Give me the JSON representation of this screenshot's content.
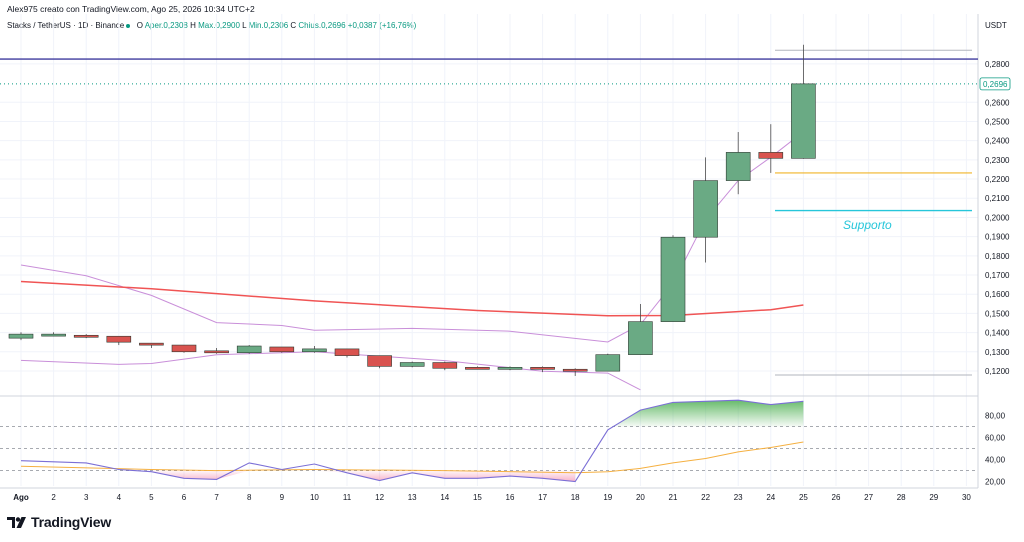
{
  "header": {
    "author_line": "Alex975 creato con TradingView.com, Ago 25, 2026 10:34 UTC+2"
  },
  "legend": {
    "symbol": "Stacks / TetherUS · 1D · Binance",
    "o_label": "O",
    "o_val": "Aper.0,2308",
    "h_label": "H",
    "h_val": "Max.0,2900",
    "l_label": "L",
    "l_val": "Min.0,2306",
    "c_label": "C",
    "c_val": "Chius.0,2696",
    "chg_val": "+0,0387 (+16,76%)"
  },
  "brand": {
    "name": "TradingView",
    "logo_icon": "tradingview-logo-icon"
  },
  "colors": {
    "up": "#6aaa84",
    "down": "#d9534f",
    "ma": "#f05454",
    "band": "#c98fd9",
    "rsi": "#7b6fd6",
    "rsi_ma": "#f5b041",
    "resistance": "#3f3a9e",
    "support": "#26c6da",
    "orange_level": "#f0b429",
    "grid": "#f0f3fa"
  },
  "chart_data": [
    {
      "type": "candlestick",
      "title": "",
      "currency_label": "USDT",
      "x_tick_labels": [
        "Ago",
        "2",
        "3",
        "4",
        "5",
        "6",
        "7",
        "8",
        "9",
        "10",
        "11",
        "12",
        "13",
        "14",
        "15",
        "16",
        "17",
        "18",
        "19",
        "20",
        "21",
        "22",
        "23",
        "24",
        "25",
        "26",
        "27",
        "28",
        "29",
        "30"
      ],
      "ylim": [
        0.108,
        0.2935
      ],
      "y_ticks": [
        0.12,
        0.13,
        0.14,
        0.15,
        0.16,
        0.17,
        0.18,
        0.19,
        0.2,
        0.21,
        0.22,
        0.23,
        0.24,
        0.25,
        0.26,
        0.28
      ],
      "y_tick_labels": [
        "0,1200",
        "0,1300",
        "0,1400",
        "0,1500",
        "0,1600",
        "0,1700",
        "0,1800",
        "0,1900",
        "0,2000",
        "0,2100",
        "0,2200",
        "0,2300",
        "0,2400",
        "0,2500",
        "0,2600",
        "0,2800"
      ],
      "last_price_label": "0,2696",
      "last_price": 0.2696,
      "candles": [
        {
          "day": "Ago",
          "open": 0.1371,
          "high": 0.1402,
          "low": 0.1361,
          "close": 0.1392
        },
        {
          "day": "2",
          "open": 0.1386,
          "high": 0.1402,
          "low": 0.1381,
          "close": 0.1392
        },
        {
          "day": "3",
          "open": 0.1386,
          "high": 0.1392,
          "low": 0.1371,
          "close": 0.1381
        },
        {
          "day": "4",
          "open": 0.1381,
          "high": 0.1381,
          "low": 0.1335,
          "close": 0.135
        },
        {
          "day": "5",
          "open": 0.1345,
          "high": 0.1345,
          "low": 0.132,
          "close": 0.1335
        },
        {
          "day": "6",
          "open": 0.1335,
          "high": 0.1335,
          "low": 0.1295,
          "close": 0.13
        },
        {
          "day": "7",
          "open": 0.1305,
          "high": 0.132,
          "low": 0.129,
          "close": 0.1295
        },
        {
          "day": "8",
          "open": 0.1295,
          "high": 0.1335,
          "low": 0.129,
          "close": 0.133
        },
        {
          "day": "9",
          "open": 0.1325,
          "high": 0.1325,
          "low": 0.1295,
          "close": 0.13
        },
        {
          "day": "10",
          "open": 0.13,
          "high": 0.133,
          "low": 0.1295,
          "close": 0.1315
        },
        {
          "day": "11",
          "open": 0.1315,
          "high": 0.1315,
          "low": 0.127,
          "close": 0.128
        },
        {
          "day": "12",
          "open": 0.128,
          "high": 0.128,
          "low": 0.1214,
          "close": 0.1224
        },
        {
          "day": "13",
          "open": 0.1224,
          "high": 0.1249,
          "low": 0.1219,
          "close": 0.1244
        },
        {
          "day": "14",
          "open": 0.1244,
          "high": 0.1249,
          "low": 0.1204,
          "close": 0.1214
        },
        {
          "day": "15",
          "open": 0.1219,
          "high": 0.1224,
          "low": 0.1209,
          "close": 0.1214
        },
        {
          "day": "16",
          "open": 0.1214,
          "high": 0.1224,
          "low": 0.1204,
          "close": 0.1219
        },
        {
          "day": "17",
          "open": 0.1219,
          "high": 0.1224,
          "low": 0.1194,
          "close": 0.1209
        },
        {
          "day": "18",
          "open": 0.1209,
          "high": 0.1214,
          "low": 0.1174,
          "close": 0.1199
        },
        {
          "day": "19",
          "open": 0.1199,
          "high": 0.129,
          "low": 0.1199,
          "close": 0.1285
        },
        {
          "day": "20",
          "open": 0.1285,
          "high": 0.1549,
          "low": 0.1285,
          "close": 0.1457
        },
        {
          "day": "21",
          "open": 0.1457,
          "high": 0.1907,
          "low": 0.1457,
          "close": 0.1897
        },
        {
          "day": "22",
          "open": 0.1897,
          "high": 0.2313,
          "low": 0.1765,
          "close": 0.2192
        },
        {
          "day": "23",
          "open": 0.2192,
          "high": 0.2445,
          "low": 0.2121,
          "close": 0.2339
        },
        {
          "day": "24",
          "open": 0.2339,
          "high": 0.2486,
          "low": 0.2232,
          "close": 0.2308
        },
        {
          "day": "25",
          "open": 0.2308,
          "high": 0.29,
          "low": 0.2306,
          "close": 0.2696
        }
      ],
      "moving_average": [
        {
          "day": "Ago",
          "value": 0.1666
        },
        {
          "day": "5",
          "value": 0.1628
        },
        {
          "day": "10",
          "value": 0.1565
        },
        {
          "day": "15",
          "value": 0.1515
        },
        {
          "day": "19",
          "value": 0.1488
        },
        {
          "day": "21",
          "value": 0.1489
        },
        {
          "day": "24",
          "value": 0.1519
        },
        {
          "day": "25",
          "value": 0.1544
        }
      ],
      "upper_band": [
        {
          "day": "Ago",
          "value": 0.1752
        },
        {
          "day": "3",
          "value": 0.1696
        },
        {
          "day": "5",
          "value": 0.1594
        },
        {
          "day": "7",
          "value": 0.1452
        },
        {
          "day": "9",
          "value": 0.1437
        },
        {
          "day": "10",
          "value": 0.1412
        },
        {
          "day": "13",
          "value": 0.1422
        },
        {
          "day": "16",
          "value": 0.1407
        },
        {
          "day": "19",
          "value": 0.1351
        },
        {
          "day": "20",
          "value": 0.1442
        },
        {
          "day": "21",
          "value": 0.1655
        },
        {
          "day": "22",
          "value": 0.1988
        },
        {
          "day": "23",
          "value": 0.2192
        },
        {
          "day": "24",
          "value": 0.2314
        },
        {
          "day": "25",
          "value": 0.2446
        }
      ],
      "lower_band": [
        {
          "day": "Ago",
          "value": 0.1255
        },
        {
          "day": "4",
          "value": 0.1234
        },
        {
          "day": "5",
          "value": 0.1239
        },
        {
          "day": "7",
          "value": 0.1285
        },
        {
          "day": "10",
          "value": 0.13
        },
        {
          "day": "14",
          "value": 0.1254
        },
        {
          "day": "17",
          "value": 0.1199
        },
        {
          "day": "19",
          "value": 0.1189
        },
        {
          "day": "20",
          "value": 0.1102
        }
      ],
      "levels": [
        {
          "name": "resistance",
          "value": 0.2825,
          "label": ""
        },
        {
          "name": "orange-level",
          "value": 0.2232,
          "label": ""
        },
        {
          "name": "support",
          "value": 0.2036,
          "label": "Supporto"
        },
        {
          "name": "gray-upper",
          "value": 0.2871,
          "label": ""
        },
        {
          "name": "gray-lower",
          "value": 0.1179,
          "label": ""
        }
      ]
    },
    {
      "type": "line",
      "title": "",
      "ylim": [
        16,
        96
      ],
      "y_ticks": [
        20,
        40,
        60,
        80
      ],
      "y_tick_labels": [
        "20,00",
        "40,00",
        "60,00",
        "80,00"
      ],
      "dashed_levels": [
        70,
        50,
        30
      ],
      "rsi": [
        {
          "day": "Ago",
          "value": 39
        },
        {
          "day": "2",
          "value": 38
        },
        {
          "day": "3",
          "value": 37
        },
        {
          "day": "4",
          "value": 31
        },
        {
          "day": "5",
          "value": 29
        },
        {
          "day": "6",
          "value": 23
        },
        {
          "day": "7",
          "value": 22
        },
        {
          "day": "8",
          "value": 37
        },
        {
          "day": "9",
          "value": 31
        },
        {
          "day": "10",
          "value": 36
        },
        {
          "day": "11",
          "value": 28
        },
        {
          "day": "12",
          "value": 21
        },
        {
          "day": "13",
          "value": 28
        },
        {
          "day": "14",
          "value": 23
        },
        {
          "day": "15",
          "value": 23
        },
        {
          "day": "16",
          "value": 25
        },
        {
          "day": "17",
          "value": 23
        },
        {
          "day": "18",
          "value": 20
        },
        {
          "day": "19",
          "value": 67
        },
        {
          "day": "20",
          "value": 85
        },
        {
          "day": "21",
          "value": 92
        },
        {
          "day": "22",
          "value": 93
        },
        {
          "day": "23",
          "value": 94
        },
        {
          "day": "24",
          "value": 90
        },
        {
          "day": "25",
          "value": 93
        }
      ],
      "rsi_ma": [
        {
          "day": "Ago",
          "value": 34
        },
        {
          "day": "5",
          "value": 31
        },
        {
          "day": "7",
          "value": 30
        },
        {
          "day": "10",
          "value": 31
        },
        {
          "day": "14",
          "value": 30
        },
        {
          "day": "18",
          "value": 28
        },
        {
          "day": "19",
          "value": 29
        },
        {
          "day": "20",
          "value": 32
        },
        {
          "day": "21",
          "value": 37
        },
        {
          "day": "22",
          "value": 41
        },
        {
          "day": "23",
          "value": 47
        },
        {
          "day": "24",
          "value": 51
        },
        {
          "day": "25",
          "value": 56
        }
      ]
    }
  ]
}
